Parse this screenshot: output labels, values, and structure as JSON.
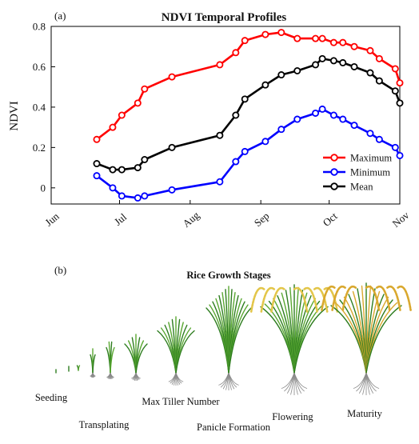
{
  "panel_a_label": "(a)",
  "panel_b_label": "(b)",
  "chart_data": {
    "type": "line",
    "title": "NDVI Temporal Profiles",
    "xlabel": "",
    "ylabel": "NDVI",
    "x_ticks": [
      "Jun",
      "Jul",
      "Aug",
      "Sep",
      "Oct",
      "Nov"
    ],
    "y_ticks": [
      "0",
      "0.2",
      "0.4",
      "0.6",
      "0.8"
    ],
    "xlim": [
      "2019-06-01",
      "2019-11-01"
    ],
    "ylim": [
      -0.08,
      0.8
    ],
    "grid": false,
    "legend_position": "bottom-right",
    "x": [
      "2019-06-21",
      "2019-06-28",
      "2019-07-02",
      "2019-07-09",
      "2019-07-12",
      "2019-07-24",
      "2019-08-14",
      "2019-08-21",
      "2019-08-25",
      "2019-09-03",
      "2019-09-10",
      "2019-09-17",
      "2019-09-25",
      "2019-09-28",
      "2019-10-03",
      "2019-10-07",
      "2019-10-12",
      "2019-10-19",
      "2019-10-23",
      "2019-10-30",
      "2019-11-01"
    ],
    "series": [
      {
        "name": "Maximum",
        "color": "#ff0000",
        "values": [
          0.24,
          0.3,
          0.36,
          0.42,
          0.49,
          0.55,
          0.61,
          0.67,
          0.73,
          0.76,
          0.77,
          0.74,
          0.74,
          0.74,
          0.72,
          0.72,
          0.7,
          0.68,
          0.64,
          0.59,
          0.52
        ]
      },
      {
        "name": "Minimum",
        "color": "#0000ff",
        "values": [
          0.06,
          0.0,
          -0.04,
          -0.05,
          -0.04,
          -0.01,
          0.03,
          0.13,
          0.18,
          0.23,
          0.29,
          0.34,
          0.37,
          0.39,
          0.36,
          0.34,
          0.31,
          0.27,
          0.24,
          0.2,
          0.16
        ]
      },
      {
        "name": "Mean",
        "color": "#000000",
        "values": [
          0.12,
          0.09,
          0.09,
          0.1,
          0.14,
          0.2,
          0.26,
          0.36,
          0.44,
          0.51,
          0.56,
          0.58,
          0.61,
          0.64,
          0.63,
          0.62,
          0.6,
          0.57,
          0.53,
          0.48,
          0.42
        ]
      }
    ]
  },
  "growth_stages": {
    "title": "Rice Growth Stages",
    "stages": [
      "Seeding",
      "Transplating",
      "Max Tiller Number",
      "Panicle Formation",
      "Flowering",
      "Maturity"
    ]
  },
  "colors": {
    "leaf_green": "#5aa832",
    "leaf_dark": "#2e7d1f",
    "grain_yellow": "#e3c64a",
    "maturity_gold": "#d9a82e",
    "root_gray": "#8a8a8a"
  }
}
